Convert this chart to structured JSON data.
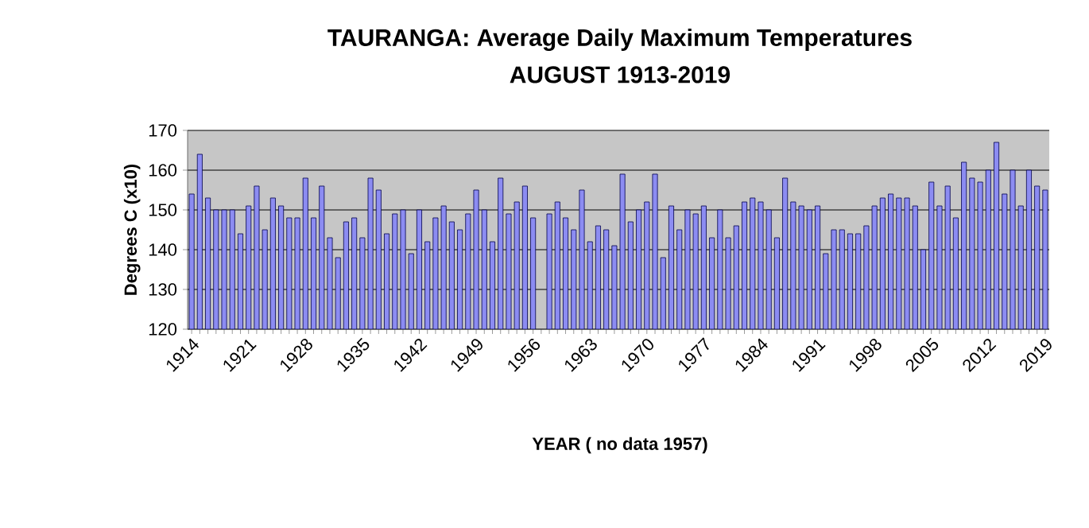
{
  "chart_data": {
    "type": "bar",
    "title": "TAURANGA: Average Daily Maximum Temperatures",
    "subtitle": "AUGUST 1913-2019",
    "xlabel": "YEAR ( no data 1957)",
    "ylabel": "Degrees C (x10)",
    "categories": [
      "1914",
      null,
      null,
      null,
      null,
      null,
      null,
      "1921",
      null,
      null,
      null,
      null,
      null,
      null,
      "1928",
      null,
      null,
      null,
      null,
      null,
      null,
      "1935",
      null,
      null,
      null,
      null,
      null,
      null,
      "1942",
      null,
      null,
      null,
      null,
      null,
      null,
      "1949",
      null,
      null,
      null,
      null,
      null,
      null,
      "1956",
      null,
      null,
      null,
      null,
      null,
      null,
      "1963",
      null,
      null,
      null,
      null,
      null,
      null,
      "1970",
      null,
      null,
      null,
      null,
      null,
      null,
      "1977",
      null,
      null,
      null,
      null,
      null,
      null,
      "1984",
      null,
      null,
      null,
      null,
      null,
      null,
      "1991",
      null,
      null,
      null,
      null,
      null,
      null,
      "1998",
      null,
      null,
      null,
      null,
      null,
      null,
      "2005",
      null,
      null,
      null,
      null,
      null,
      null,
      "2012",
      null,
      null,
      null,
      null,
      null,
      null,
      "2019"
    ],
    "values": [
      154,
      164,
      153,
      150,
      150,
      150,
      144,
      151,
      156,
      145,
      153,
      151,
      148,
      148,
      158,
      148,
      156,
      143,
      138,
      147,
      148,
      143,
      158,
      155,
      144,
      149,
      150,
      139,
      150,
      142,
      148,
      151,
      147,
      145,
      149,
      155,
      150,
      142,
      158,
      149,
      152,
      156,
      148,
      null,
      149,
      152,
      148,
      145,
      155,
      142,
      146,
      145,
      141,
      159,
      147,
      150,
      152,
      159,
      138,
      151,
      145,
      150,
      149,
      151,
      143,
      150,
      143,
      146,
      152,
      153,
      152,
      150,
      143,
      158,
      152,
      151,
      150,
      151,
      139,
      145,
      145,
      144,
      144,
      146,
      151,
      153,
      154,
      153,
      153,
      151,
      140,
      157,
      151,
      156,
      148,
      162,
      158,
      157,
      160,
      167,
      154,
      160,
      151,
      160,
      156,
      155
    ],
    "color": "#8c8cf2",
    "ylim": [
      120,
      170
    ],
    "yticks": [
      120,
      130,
      140,
      150,
      160,
      170
    ],
    "grid": "y"
  }
}
